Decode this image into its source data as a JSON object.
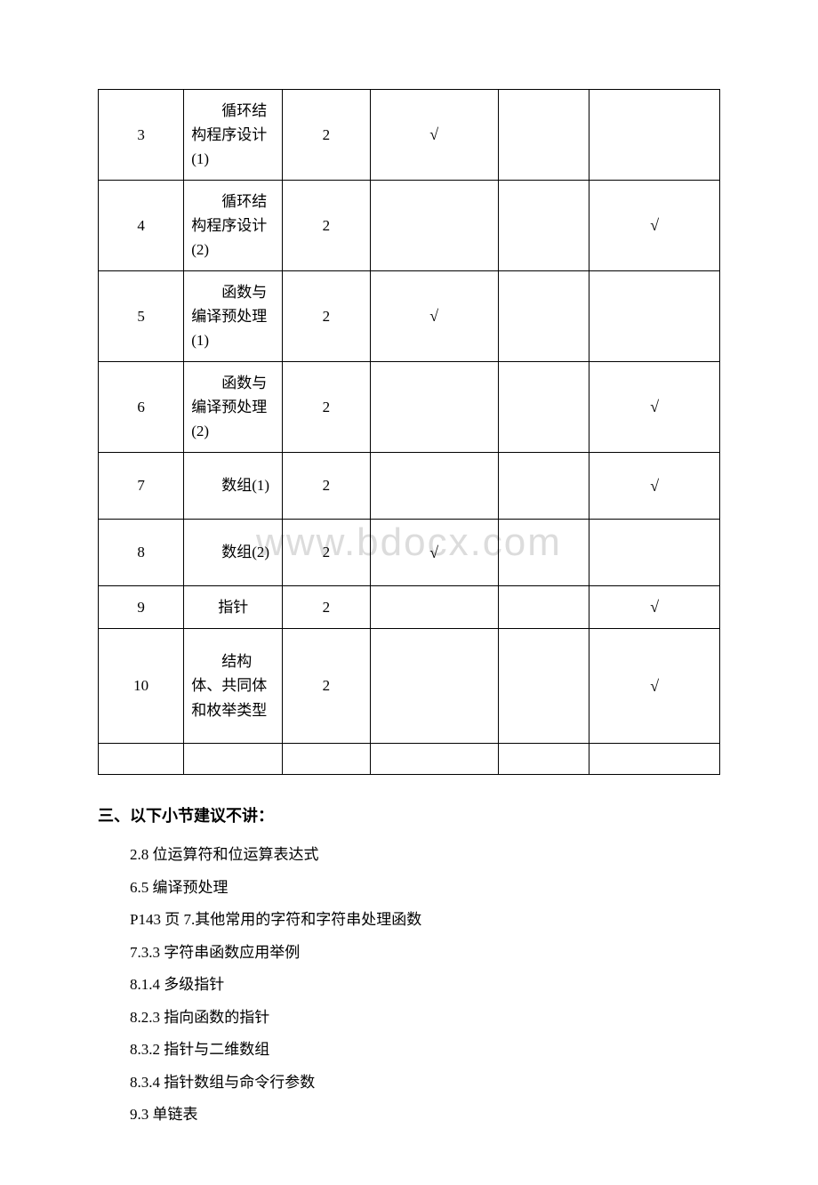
{
  "watermark": "www.bdocx.com",
  "table": {
    "columns": 6,
    "rows": [
      {
        "no": "3",
        "topic": "循环结构程序设计(1)",
        "hours": "2",
        "c4": "√",
        "c5": "",
        "c6": "",
        "topicLines": 3
      },
      {
        "no": "4",
        "topic": "循环结构程序设计(2)",
        "hours": "2",
        "c4": "",
        "c5": "",
        "c6": "√",
        "topicLines": 3
      },
      {
        "no": "5",
        "topic": "函数与编译预处理(1)",
        "hours": "2",
        "c4": "√",
        "c5": "",
        "c6": "",
        "topicLines": 3
      },
      {
        "no": "6",
        "topic": "函数与编译预处理(2)",
        "hours": "2",
        "c4": "",
        "c5": "",
        "c6": "√",
        "topicLines": 3
      },
      {
        "no": "7",
        "topic": "数组(1)",
        "hours": "2",
        "c4": "",
        "c5": "",
        "c6": "√",
        "topicLines": 2
      },
      {
        "no": "8",
        "topic": "数组(2)",
        "hours": "2",
        "c4": "√",
        "c5": "",
        "c6": "",
        "topicLines": 2
      },
      {
        "no": "9",
        "topic": "指针",
        "hours": "2",
        "c4": "",
        "c5": "",
        "c6": "√",
        "topicLines": 1,
        "centerTopic": true
      },
      {
        "no": "10",
        "topic": "结构体、共同体和枚举类型",
        "hours": "2",
        "c4": "",
        "c5": "",
        "c6": "√",
        "topicLines": 4
      }
    ]
  },
  "section3": {
    "heading": "三、以下小节建议不讲：",
    "items": [
      "2.8 位运算符和位运算表达式",
      "6.5 编译预处理",
      "P143 页 7.其他常用的字符和字符串处理函数",
      "7.3.3 字符串函数应用举例",
      "8.1.4 多级指针",
      "8.2.3 指向函数的指针",
      "8.3.2 指针与二维数组",
      "8.3.4 指针数组与命令行参数",
      "9.3 单链表"
    ]
  }
}
